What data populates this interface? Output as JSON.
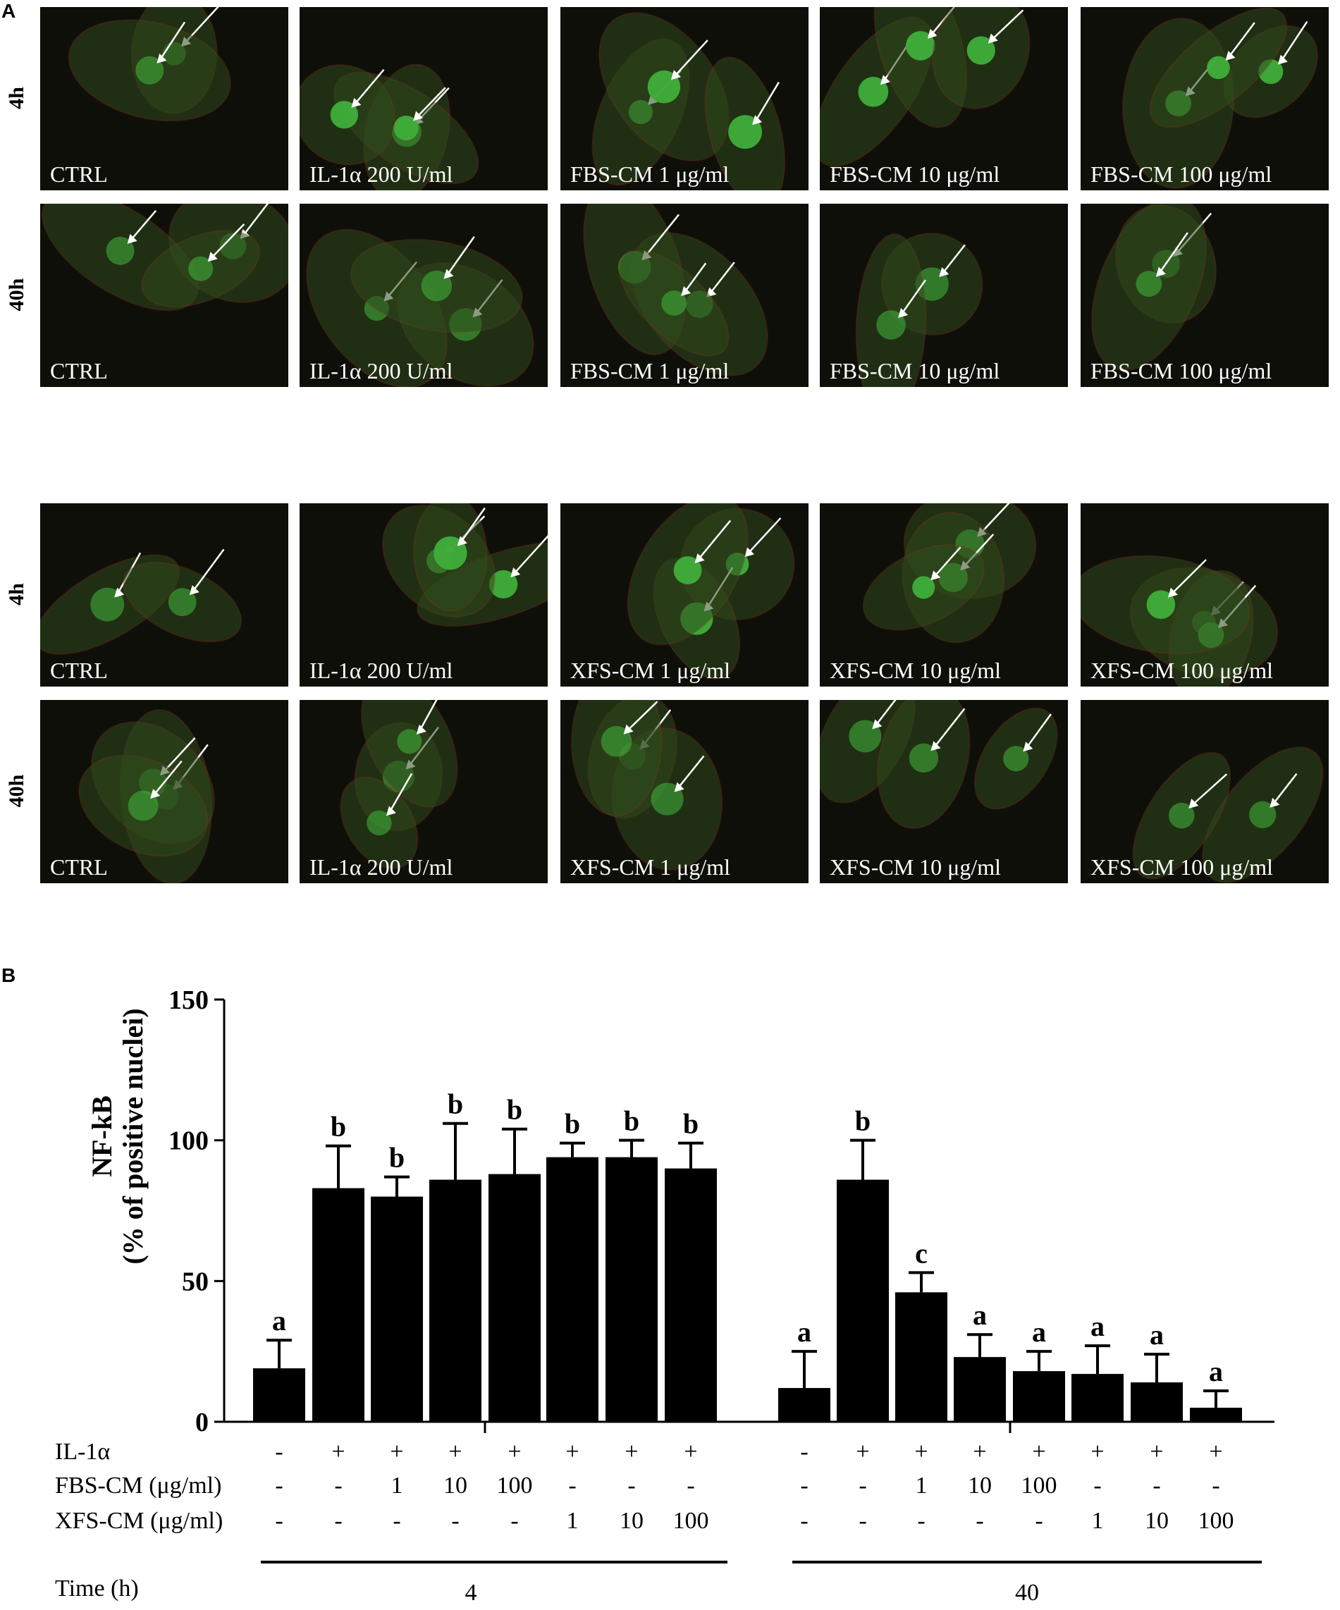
{
  "panel_a": {
    "label": "A",
    "groups": [
      {
        "rows": [
          {
            "time": "4h",
            "captions": [
              "CTRL",
              "IL-1α 200 U/ml",
              "FBS-CM 1 μg/ml",
              "FBS-CM 10 μg/ml",
              "FBS-CM 100 μg/ml"
            ]
          },
          {
            "time": "40h",
            "captions": [
              "CTRL",
              "IL-1α 200 U/ml",
              "FBS-CM 1 μg/ml",
              "FBS-CM 10 μg/ml",
              "FBS-CM 100 μg/ml"
            ]
          }
        ]
      },
      {
        "rows": [
          {
            "time": "4h",
            "captions": [
              "CTRL",
              "IL-1α 200 U/ml",
              "XFS-CM 1 μg/ml",
              "XFS-CM 10 μg/ml",
              "XFS-CM 100 μg/ml"
            ]
          },
          {
            "time": "40h",
            "captions": [
              "CTRL",
              "IL-1α 200 U/ml",
              "XFS-CM 1 μg/ml",
              "XFS-CM 10 μg/ml",
              "XFS-CM 100 μg/ml"
            ]
          }
        ]
      }
    ],
    "colors": {
      "nuclei_green": "#3fae3a",
      "actin_red": "#b8322a",
      "background": "#0e0f08",
      "arrow": "#ffffff"
    }
  },
  "panel_b": {
    "label": "B",
    "treatment_rows": [
      {
        "label": "IL-1α",
        "values": [
          "-",
          "+",
          "+",
          "+",
          "+",
          "+",
          "+",
          "+",
          "-",
          "+",
          "+",
          "+",
          "+",
          "+",
          "+",
          "+"
        ]
      },
      {
        "label": "FBS-CM  (μg/ml)",
        "values": [
          "-",
          "-",
          "1",
          "10",
          "100",
          "-",
          "-",
          "-",
          "-",
          "-",
          "1",
          "10",
          "100",
          "-",
          "-",
          "-"
        ]
      },
      {
        "label": "XFS-CM (μg/ml)",
        "values": [
          "-",
          "-",
          "-",
          "-",
          "-",
          "1",
          "10",
          "100",
          "-",
          "-",
          "-",
          "-",
          "-",
          "1",
          "10",
          "100"
        ]
      }
    ],
    "time_label": "Time (h)",
    "time_groups": [
      "4",
      "40"
    ]
  },
  "chart_data": {
    "type": "bar",
    "ylabel_line1": "NF-kB",
    "ylabel_line2": "(% of positive nuclei)",
    "ylim": [
      0,
      150
    ],
    "yticks": [
      "0",
      "50",
      "100",
      "150"
    ],
    "grid": false,
    "bar_color": "#000000",
    "values": [
      19,
      83,
      80,
      86,
      88,
      94,
      94,
      90,
      12,
      86,
      46,
      23,
      18,
      17,
      14,
      5
    ],
    "errors": [
      10,
      15,
      7,
      20,
      16,
      5,
      6,
      9,
      13,
      14,
      7,
      8,
      7,
      10,
      10,
      6
    ],
    "significance": [
      "a",
      "b",
      "b",
      "b",
      "b",
      "b",
      "b",
      "b",
      "a",
      "b",
      "c",
      "a",
      "a",
      "a",
      "a",
      "a"
    ]
  }
}
